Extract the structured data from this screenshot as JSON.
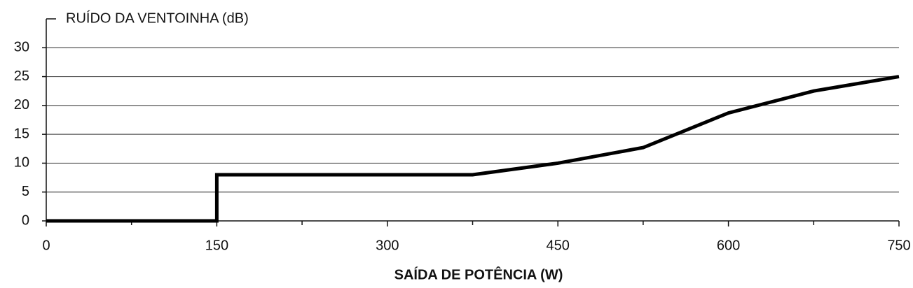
{
  "chart_data": {
    "type": "line",
    "y_label": "RUÍDO DA VENTOINHA (dB)",
    "x_label": "SAÍDA DE POTÊNCIA (W)",
    "x": [
      0,
      150,
      150,
      375,
      450,
      525,
      600,
      675,
      750
    ],
    "series": [
      {
        "color": "#000000",
        "values": [
          0,
          0,
          8,
          8,
          10,
          12.7,
          18.7,
          22.5,
          25
        ]
      }
    ],
    "xlim": [
      0,
      750
    ],
    "xticks": [
      0,
      150,
      300,
      450,
      600,
      750
    ],
    "x_minor_ticks": [
      75,
      225,
      375,
      525,
      675
    ],
    "ylim": [
      0,
      35
    ],
    "yticks": [
      0,
      5,
      10,
      15,
      20,
      25,
      30
    ],
    "grid": true
  }
}
